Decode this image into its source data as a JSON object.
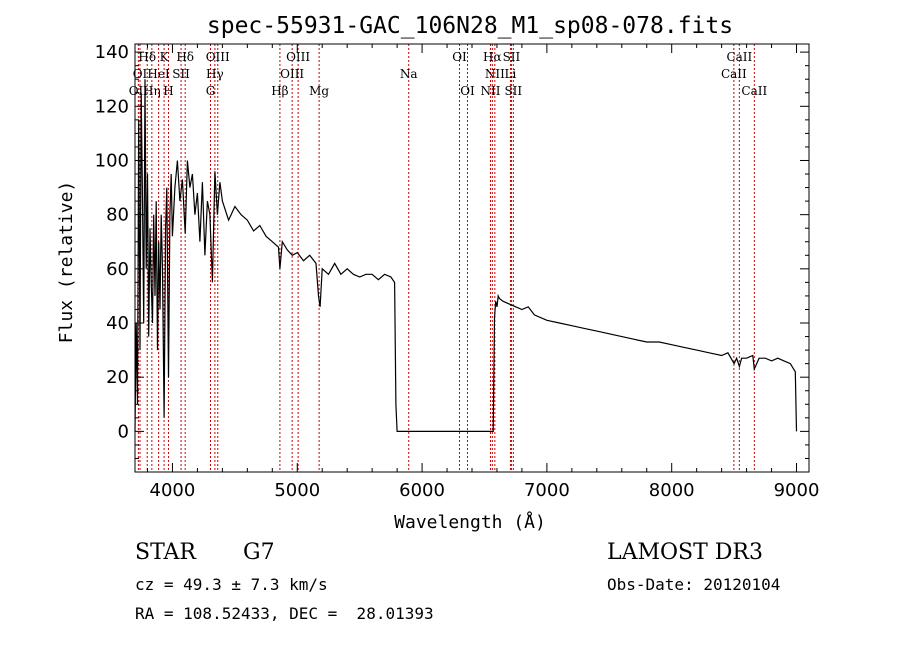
{
  "chart_data": {
    "type": "line",
    "title": "spec-55931-GAC_106N28_M1_sp08-078.fits",
    "xlabel": "Wavelength (Å)",
    "ylabel": "Flux (relative)",
    "xlim": [
      3700,
      9100
    ],
    "ylim": [
      -15,
      143
    ],
    "xticks": [
      4000,
      5000,
      6000,
      7000,
      8000,
      9000
    ],
    "yticks": [
      0,
      20,
      40,
      60,
      80,
      100,
      120,
      140
    ],
    "series": [
      {
        "name": "flux",
        "x": [
          3700,
          3710,
          3720,
          3730,
          3740,
          3750,
          3760,
          3770,
          3780,
          3790,
          3800,
          3810,
          3820,
          3830,
          3840,
          3850,
          3860,
          3870,
          3880,
          3890,
          3900,
          3910,
          3920,
          3933,
          3945,
          3955,
          3968,
          3980,
          3990,
          4000,
          4020,
          4040,
          4060,
          4080,
          4102,
          4120,
          4140,
          4160,
          4180,
          4200,
          4220,
          4240,
          4260,
          4280,
          4300,
          4320,
          4340,
          4360,
          4380,
          4400,
          4450,
          4500,
          4550,
          4600,
          4650,
          4700,
          4750,
          4800,
          4850,
          4861,
          4880,
          4920,
          4960,
          5000,
          5050,
          5100,
          5150,
          5170,
          5183,
          5200,
          5250,
          5300,
          5350,
          5400,
          5450,
          5500,
          5550,
          5600,
          5650,
          5700,
          5750,
          5780,
          5790,
          5800,
          6570,
          6580,
          6590,
          6600,
          6610,
          6620,
          6650,
          6700,
          6750,
          6800,
          6850,
          6900,
          7000,
          7100,
          7200,
          7300,
          7400,
          7500,
          7600,
          7700,
          7800,
          7900,
          8000,
          8100,
          8200,
          8300,
          8400,
          8450,
          8500,
          8520,
          8542,
          8560,
          8600,
          8650,
          8662,
          8700,
          8750,
          8800,
          8850,
          8900,
          8950,
          8990,
          9000
        ],
        "values": [
          0,
          40,
          10,
          115,
          30,
          125,
          85,
          40,
          130,
          60,
          95,
          35,
          75,
          55,
          40,
          80,
          50,
          85,
          30,
          70,
          45,
          80,
          60,
          5,
          75,
          90,
          20,
          80,
          95,
          72,
          90,
          100,
          85,
          93,
          73,
          100,
          90,
          95,
          80,
          88,
          70,
          92,
          65,
          85,
          80,
          55,
          96,
          80,
          92,
          85,
          78,
          83,
          80,
          78,
          74,
          76,
          72,
          70,
          68,
          60,
          70,
          67,
          65,
          66,
          63,
          65,
          62,
          50,
          46,
          60,
          58,
          62,
          58,
          60,
          58,
          57,
          58,
          58,
          56,
          58,
          57,
          55,
          10,
          0,
          0,
          42,
          48,
          46,
          50,
          49,
          48,
          47,
          46,
          45,
          46,
          43,
          41,
          40,
          39,
          38,
          37,
          36,
          35,
          34,
          33,
          33,
          32,
          31,
          30,
          29,
          28,
          29,
          25,
          27,
          24,
          27,
          27,
          28,
          23,
          27,
          27,
          26,
          27,
          26,
          25,
          22,
          0
        ]
      }
    ],
    "spectral_lines": [
      {
        "name": "Hδ",
        "wavelength": 3798,
        "row": 1
      },
      {
        "name": "OI",
        "wavelength": 3740,
        "row": 2
      },
      {
        "name": "OII",
        "wavelength": 3727,
        "row": 3
      },
      {
        "name": "K",
        "wavelength": 3933,
        "row": 1
      },
      {
        "name": "HeI",
        "wavelength": 3889,
        "row": 2
      },
      {
        "name": "Hη",
        "wavelength": 3835,
        "row": 3
      },
      {
        "name": "SII",
        "wavelength": 4069,
        "row": 2
      },
      {
        "name": "H",
        "wavelength": 3968,
        "row": 3
      },
      {
        "name": "Hδ",
        "wavelength": 4102,
        "row": 1
      },
      {
        "name": "OIII",
        "wavelength": 4363,
        "row": 1
      },
      {
        "name": "Hγ",
        "wavelength": 4340,
        "row": 2
      },
      {
        "name": "G",
        "wavelength": 4305,
        "row": 3
      },
      {
        "name": "OIII",
        "wavelength": 5007,
        "row": 1
      },
      {
        "name": "OIII",
        "wavelength": 4959,
        "row": 2
      },
      {
        "name": "Hβ",
        "wavelength": 4861,
        "row": 3
      },
      {
        "name": "Mg",
        "wavelength": 5175,
        "row": 3
      },
      {
        "name": "Na",
        "wavelength": 5893,
        "row": 2
      },
      {
        "name": "OI",
        "wavelength": 6300,
        "row": 1
      },
      {
        "name": "OI",
        "wavelength": 6364,
        "row": 3
      },
      {
        "name": "Hα",
        "wavelength": 6563,
        "row": 1
      },
      {
        "name": "NII",
        "wavelength": 6583,
        "row": 2
      },
      {
        "name": "NII",
        "wavelength": 6548,
        "row": 3
      },
      {
        "name": "SII",
        "wavelength": 6716,
        "row": 1
      },
      {
        "name": "Li",
        "wavelength": 6708,
        "row": 2
      },
      {
        "name": "SII",
        "wavelength": 6731,
        "row": 3
      },
      {
        "name": "CaII",
        "wavelength": 8542,
        "row": 1
      },
      {
        "name": "CaII",
        "wavelength": 8498,
        "row": 2
      },
      {
        "name": "CaII",
        "wavelength": 8662,
        "row": 3
      }
    ],
    "line_marker_color": "#cc0000",
    "grid": false,
    "legend": "none"
  },
  "info": {
    "object_class": "STAR",
    "subclass": "G7",
    "survey": "LAMOST DR3",
    "redshift": "cz = 49.3 ± 7.3 km/s",
    "obs_date": "Obs-Date: 20120104",
    "coords": "RA = 108.52433, DEC =  28.01393"
  }
}
